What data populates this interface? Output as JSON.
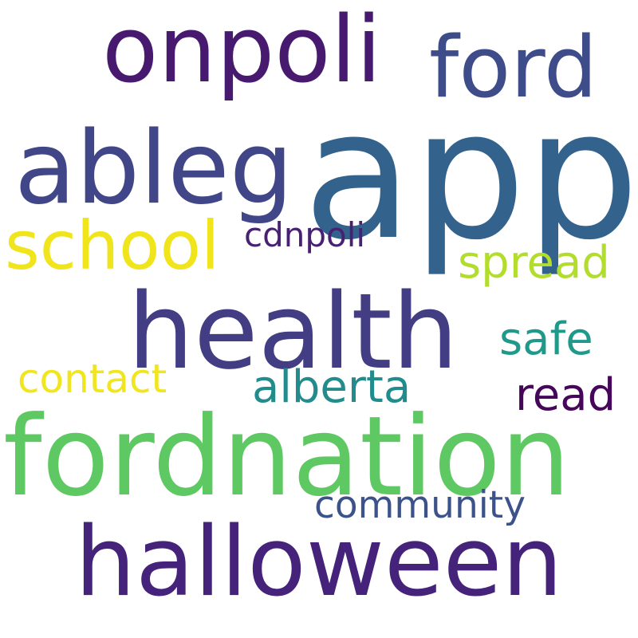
{
  "words": {
    "app": {
      "text": "app",
      "color": "#33638d"
    },
    "halloween": {
      "text": "halloween",
      "color": "#46237a"
    },
    "fordnation": {
      "text": "fordnation",
      "color": "#5ec962"
    },
    "health": {
      "text": "health",
      "color": "#433d84"
    },
    "ableg": {
      "text": "ableg",
      "color": "#404688"
    },
    "onpoli": {
      "text": "onpoli",
      "color": "#471a6f"
    },
    "ford": {
      "text": "ford",
      "color": "#3e4c8a"
    },
    "school": {
      "text": "school",
      "color": "#f0e51d"
    },
    "spread": {
      "text": "spread",
      "color": "#b2dd2d"
    },
    "cdnpoli": {
      "text": "cdnpoli",
      "color": "#482173"
    },
    "safe": {
      "text": "safe",
      "color": "#1f9a8a"
    },
    "alberta": {
      "text": "alberta",
      "color": "#228c8d"
    },
    "read": {
      "text": "read",
      "color": "#46075a"
    },
    "contact": {
      "text": "contact",
      "color": "#f1e51d"
    },
    "community": {
      "text": "community",
      "color": "#3b528b"
    }
  }
}
